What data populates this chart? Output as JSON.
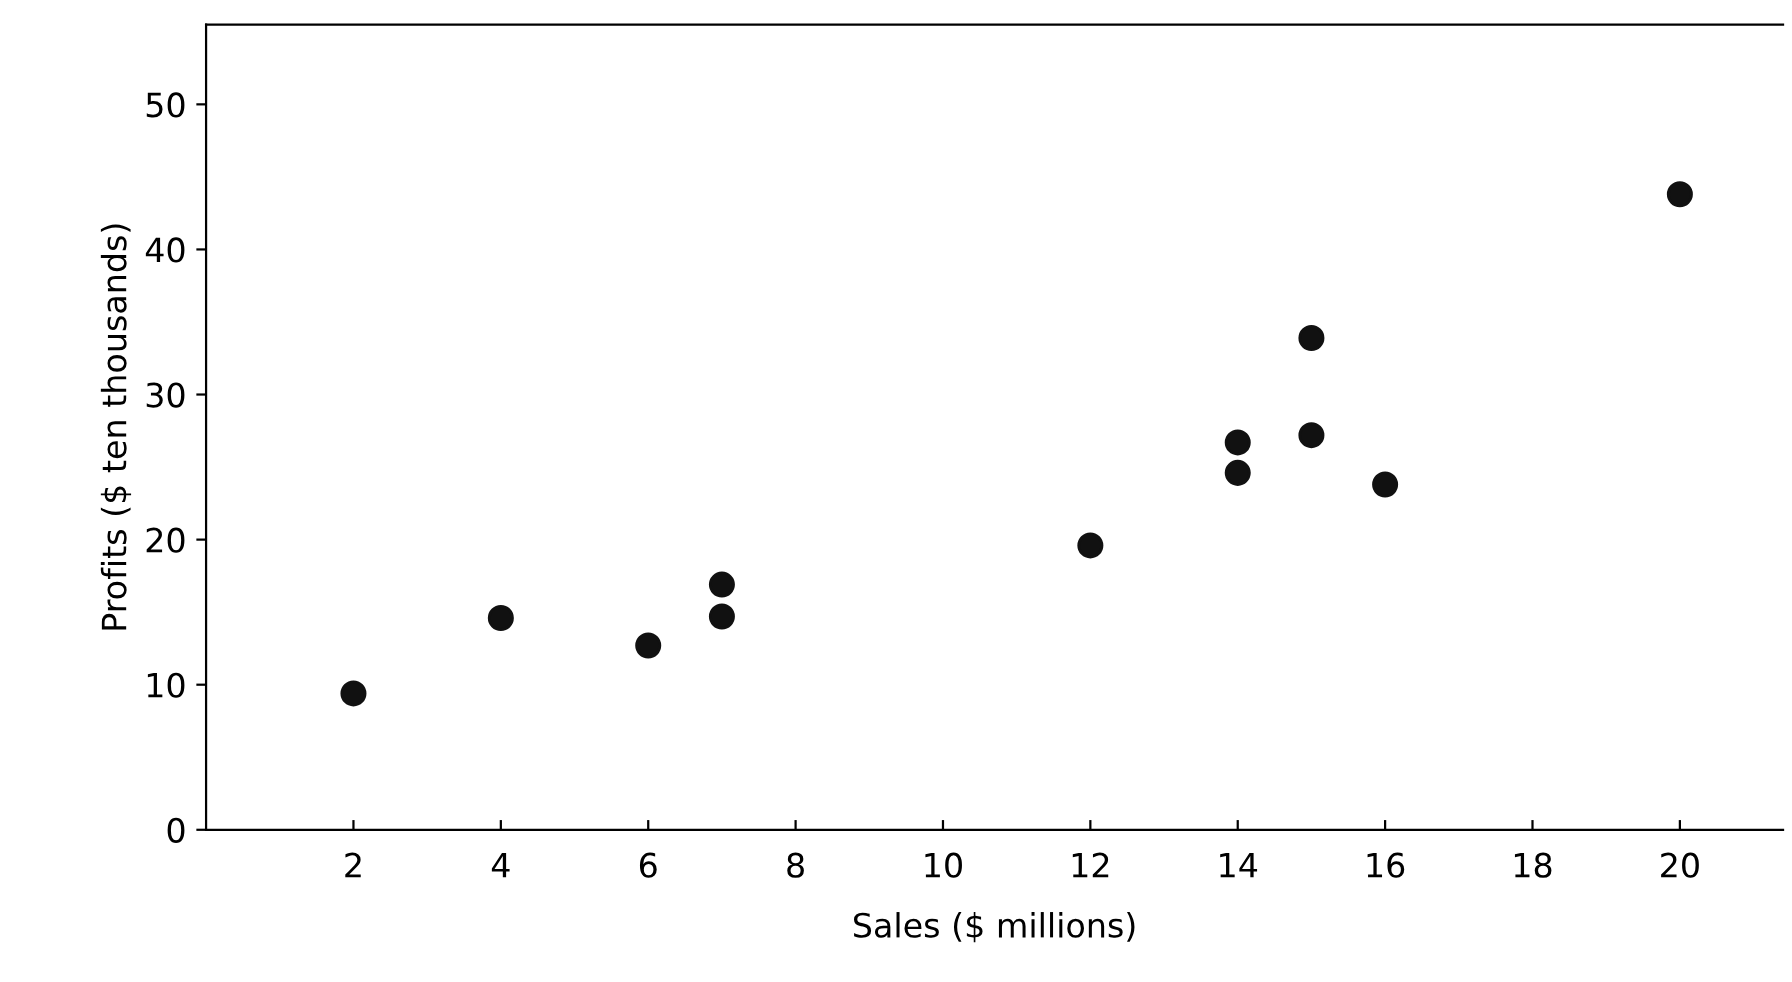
{
  "chart_data": {
    "type": "scatter",
    "xlabel": "Sales ($ millions)",
    "ylabel": "Profits ($ ten thousands)",
    "x": [
      2,
      4,
      6,
      7,
      7,
      12,
      14,
      14,
      15,
      15,
      16,
      20
    ],
    "values": [
      9.4,
      14.6,
      12.7,
      16.9,
      14.7,
      19.6,
      26.7,
      24.6,
      33.9,
      27.2,
      23.8,
      43.8
    ],
    "color": "#111111",
    "marker": "circle",
    "xlim": [
      0,
      21.4
    ],
    "ylim": [
      0,
      55.5
    ],
    "xticks": [
      2,
      4,
      6,
      8,
      10,
      12,
      14,
      16,
      18,
      20
    ],
    "yticks": [
      0,
      10,
      20,
      30,
      40,
      50
    ],
    "grid": false
  }
}
